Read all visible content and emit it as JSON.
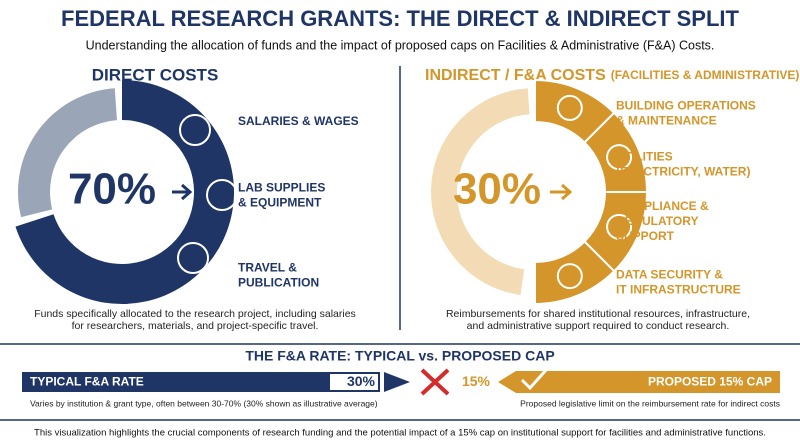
{
  "header": {
    "title": "FEDERAL RESEARCH GRANTS: THE DIRECT & INDIRECT SPLIT",
    "subtitle": "Understanding the allocation of funds and the impact of proposed caps on Facilities & Administrative (F&A) Costs."
  },
  "direct": {
    "heading": "DIRECT COSTS",
    "percent": "70%",
    "items": [
      [
        "SALARIES & WAGES"
      ],
      [
        "LAB SUPPLIES",
        "& EQUIPMENT"
      ],
      [
        "TRAVEL &",
        "PUBLICATION"
      ]
    ],
    "description": [
      "Funds specifically allocated to the research project, including salaries",
      "for researchers, materials, and project-specific travel."
    ]
  },
  "indirect": {
    "heading": "INDIRECT / F&A COSTS",
    "heading_note": "(FACILITIES & ADMINISTRATIVE)",
    "percent": "30%",
    "items": [
      [
        "BUILDING OPERATIONS",
        "& MAINTENANCE"
      ],
      [
        "UTILITIES",
        "(ELECTRICITY, WATER)"
      ],
      [
        "COMPLIANCE &",
        "REGULATORY",
        "SUPPORT"
      ],
      [
        "DATA SECURITY &",
        "IT INFRASTRUCTURE"
      ]
    ],
    "description": [
      "Reimbursements for shared institutional resources, infrastructure,",
      "and administrative support required to conduct research."
    ]
  },
  "rate": {
    "heading": "THE F&A RATE: TYPICAL vs. PROPOSED CAP",
    "typical_label": "TYPICAL F&A RATE",
    "typical_value": "30%",
    "typical_note": "Varies by institution & grant type, often between 30-70% (30% shown as illustrative average)",
    "proposed_value": "15%",
    "proposed_label": "PROPOSED 15% CAP",
    "proposed_note": "Proposed legislative limit on the reimbursement rate for indirect costs"
  },
  "footer": {
    "text": "This visualization highlights the crucial components of research funding and the potential impact of a 15% cap on institutional support for facilities and administrative functions."
  }
}
